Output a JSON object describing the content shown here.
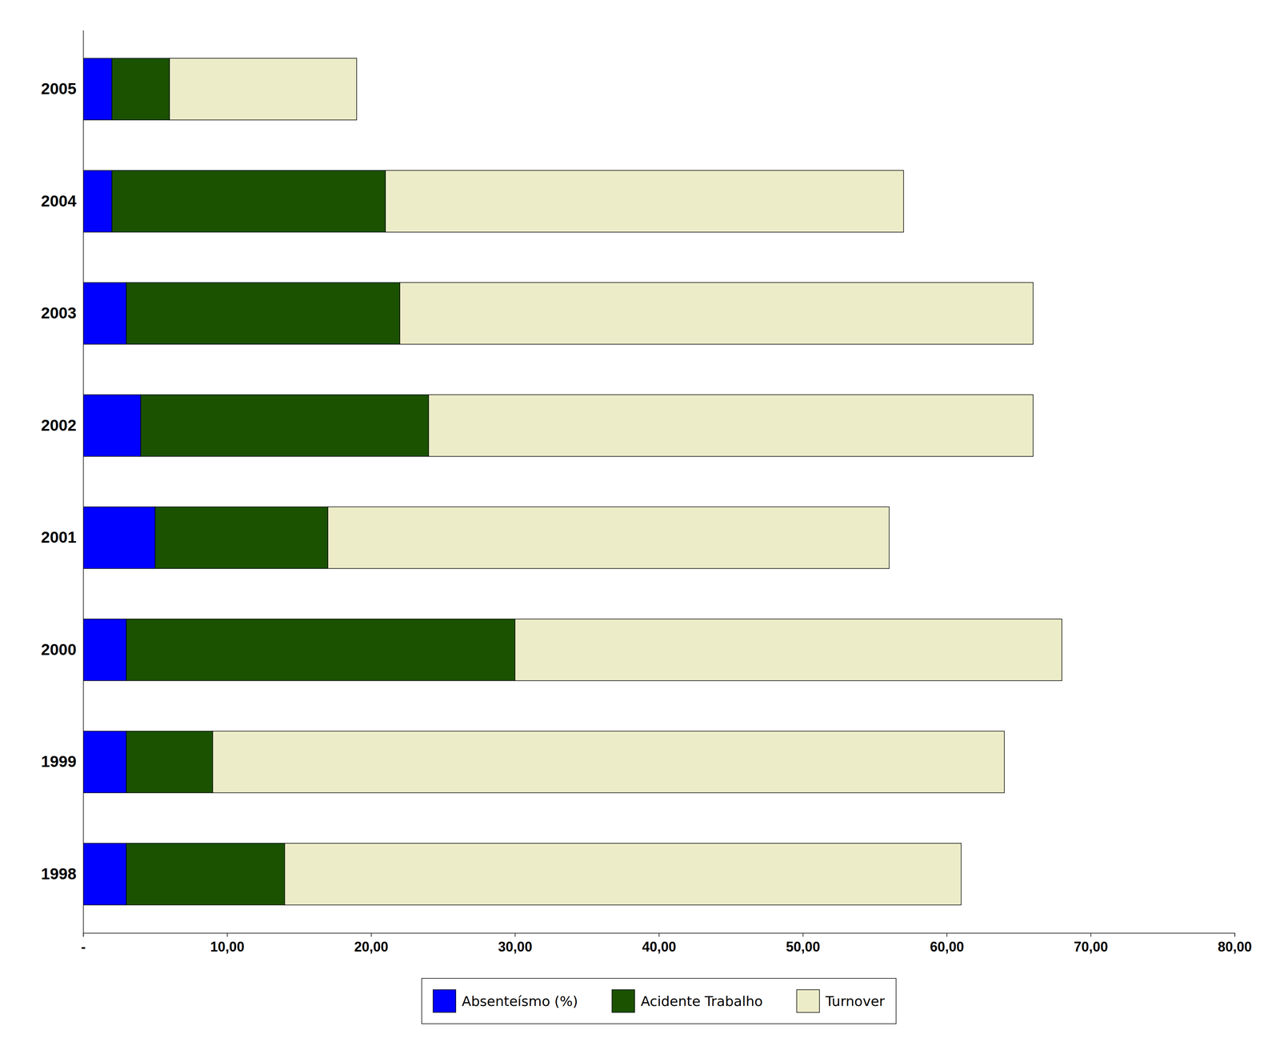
{
  "chart_data": {
    "type": "bar",
    "orientation": "horizontal",
    "stacked": true,
    "categories": [
      "2005",
      "2004",
      "2003",
      "2002",
      "2001",
      "2000",
      "1999",
      "1998"
    ],
    "series": [
      {
        "name": "Absenteísmo (%)",
        "color": "#0000FF",
        "values": [
          2.0,
          2.0,
          3.0,
          4.0,
          5.0,
          3.0,
          3.0,
          3.0
        ]
      },
      {
        "name": "Acidente Trabalho",
        "color": "#1A5200",
        "values": [
          4.0,
          19.0,
          19.0,
          20.0,
          12.0,
          27.0,
          6.0,
          11.0
        ]
      },
      {
        "name": "Turnover",
        "color": "#ECECC8",
        "values": [
          13.0,
          36.0,
          44.0,
          42.0,
          39.0,
          38.0,
          55.0,
          47.0
        ]
      }
    ],
    "xlim": [
      0,
      80
    ],
    "xticks": [
      {
        "value": 0,
        "label": "-"
      },
      {
        "value": 10,
        "label": "10,00"
      },
      {
        "value": 20,
        "label": "20,00"
      },
      {
        "value": 30,
        "label": "30,00"
      },
      {
        "value": 40,
        "label": "40,00"
      },
      {
        "value": 50,
        "label": "50,00"
      },
      {
        "value": 60,
        "label": "60,00"
      },
      {
        "value": 70,
        "label": "70,00"
      },
      {
        "value": 80,
        "label": "80,00"
      }
    ],
    "grid": false,
    "legend": "bottom"
  }
}
